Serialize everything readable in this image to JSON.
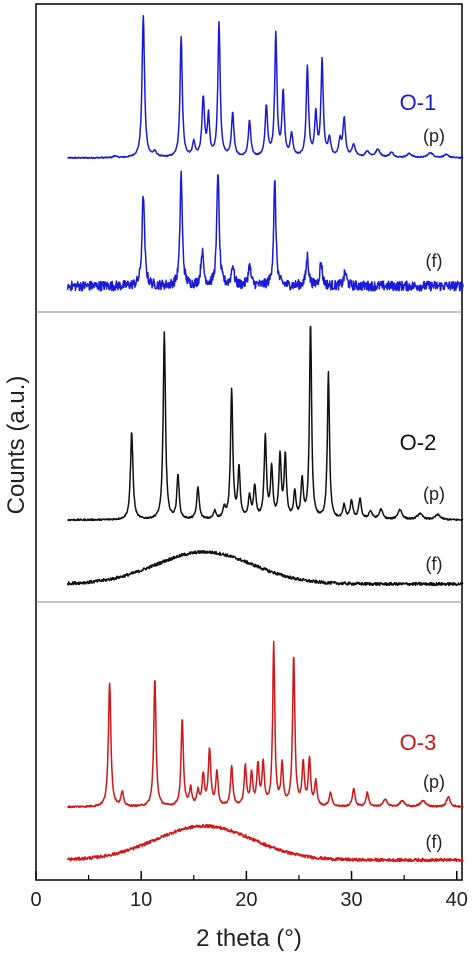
{
  "chart_data": {
    "type": "line",
    "xlabel": "2 theta (°)",
    "ylabel": "Counts (a.u.)",
    "xlim": [
      0,
      40.5
    ],
    "xticks": [
      0,
      10,
      20,
      30,
      40
    ],
    "panels": [
      {
        "label": "O-1",
        "color": "#1a1adb",
        "traces": [
          {
            "label": "(p)",
            "baseline": 158,
            "noise": 0.6,
            "peaks": [
              [
                7.5,
                2,
                0.15
              ],
              [
                10.2,
                142,
                0.14
              ],
              [
                11.3,
                5,
                0.2
              ],
              [
                13.8,
                120,
                0.13
              ],
              [
                15.0,
                14,
                0.15
              ],
              [
                15.9,
                58,
                0.15
              ],
              [
                16.4,
                40,
                0.12
              ],
              [
                17.4,
                134,
                0.13
              ],
              [
                18.7,
                44,
                0.14
              ],
              [
                20.3,
                36,
                0.14
              ],
              [
                21.9,
                50,
                0.14
              ],
              [
                22.8,
                122,
                0.13
              ],
              [
                23.5,
                64,
                0.13
              ],
              [
                24.3,
                22,
                0.15
              ],
              [
                25.8,
                90,
                0.13
              ],
              [
                26.6,
                42,
                0.13
              ],
              [
                27.2,
                96,
                0.13
              ],
              [
                27.9,
                18,
                0.15
              ],
              [
                28.9,
                16,
                0.15
              ],
              [
                29.3,
                38,
                0.14
              ],
              [
                30.2,
                12,
                0.2
              ],
              [
                31.5,
                6,
                0.25
              ],
              [
                32.5,
                8,
                0.25
              ],
              [
                33.8,
                5,
                0.25
              ],
              [
                35.5,
                4,
                0.3
              ],
              [
                37.5,
                5,
                0.3
              ],
              [
                39.0,
                3,
                0.3
              ]
            ]
          },
          {
            "label": "(f)",
            "baseline": 286,
            "noise": 5,
            "peaks": [
              [
                10.2,
                92,
                0.14
              ],
              [
                13.8,
                112,
                0.13
              ],
              [
                15.8,
                34,
                0.15
              ],
              [
                17.3,
                116,
                0.13
              ],
              [
                18.7,
                20,
                0.15
              ],
              [
                20.3,
                20,
                0.15
              ],
              [
                22.7,
                104,
                0.13
              ],
              [
                25.8,
                30,
                0.14
              ],
              [
                27.1,
                24,
                0.14
              ],
              [
                29.4,
                14,
                0.15
              ]
            ]
          }
        ]
      },
      {
        "label": "O-2",
        "color": "#111111",
        "traces": [
          {
            "label": "(p)",
            "baseline": 520,
            "noise": 0.8,
            "peaks": [
              [
                9.1,
                88,
                0.14
              ],
              [
                12.2,
                188,
                0.13
              ],
              [
                13.5,
                44,
                0.13
              ],
              [
                15.4,
                32,
                0.14
              ],
              [
                17.0,
                8,
                0.15
              ],
              [
                17.9,
                10,
                0.15
              ],
              [
                18.6,
                128,
                0.13
              ],
              [
                19.3,
                50,
                0.13
              ],
              [
                20.3,
                22,
                0.14
              ],
              [
                20.8,
                32,
                0.14
              ],
              [
                21.8,
                82,
                0.13
              ],
              [
                22.4,
                50,
                0.13
              ],
              [
                23.2,
                62,
                0.13
              ],
              [
                23.7,
                62,
                0.13
              ],
              [
                24.6,
                26,
                0.13
              ],
              [
                25.3,
                38,
                0.13
              ],
              [
                26.1,
                196,
                0.12
              ],
              [
                27.8,
                146,
                0.12
              ],
              [
                29.3,
                14,
                0.15
              ],
              [
                30.0,
                18,
                0.15
              ],
              [
                30.8,
                20,
                0.15
              ],
              [
                31.8,
                8,
                0.2
              ],
              [
                32.8,
                10,
                0.2
              ],
              [
                34.6,
                10,
                0.25
              ],
              [
                36.5,
                6,
                0.3
              ],
              [
                38.2,
                5,
                0.3
              ]
            ]
          },
          {
            "label": "(f)",
            "baseline": 584,
            "noise": 1.5,
            "hump": [
              16,
              6.5,
              32
            ],
            "peaks": []
          }
        ]
      },
      {
        "label": "O-3",
        "color": "#d41515",
        "traces": [
          {
            "label": "(p)",
            "baseline": 807,
            "noise": 0.8,
            "peaks": [
              [
                7.0,
                124,
                0.14
              ],
              [
                8.2,
                14,
                0.14
              ],
              [
                11.3,
                128,
                0.13
              ],
              [
                13.9,
                88,
                0.13
              ],
              [
                14.7,
                18,
                0.13
              ],
              [
                15.4,
                14,
                0.14
              ],
              [
                15.9,
                30,
                0.14
              ],
              [
                16.5,
                56,
                0.14
              ],
              [
                17.2,
                34,
                0.13
              ],
              [
                18.6,
                40,
                0.13
              ],
              [
                19.9,
                40,
                0.13
              ],
              [
                20.5,
                32,
                0.13
              ],
              [
                21.1,
                40,
                0.13
              ],
              [
                21.6,
                42,
                0.13
              ],
              [
                22.6,
                162,
                0.12
              ],
              [
                23.4,
                40,
                0.13
              ],
              [
                24.5,
                150,
                0.13
              ],
              [
                25.4,
                42,
                0.13
              ],
              [
                26.0,
                46,
                0.13
              ],
              [
                26.6,
                24,
                0.13
              ],
              [
                28.0,
                14,
                0.15
              ],
              [
                30.2,
                18,
                0.15
              ],
              [
                31.5,
                14,
                0.15
              ],
              [
                33.2,
                8,
                0.2
              ],
              [
                34.8,
                6,
                0.25
              ],
              [
                36.8,
                6,
                0.3
              ],
              [
                39.2,
                10,
                0.2
              ]
            ]
          },
          {
            "label": "(f)",
            "baseline": 860,
            "noise": 1.5,
            "hump": [
              16,
              6.5,
              34
            ],
            "peaks": []
          }
        ]
      }
    ]
  }
}
